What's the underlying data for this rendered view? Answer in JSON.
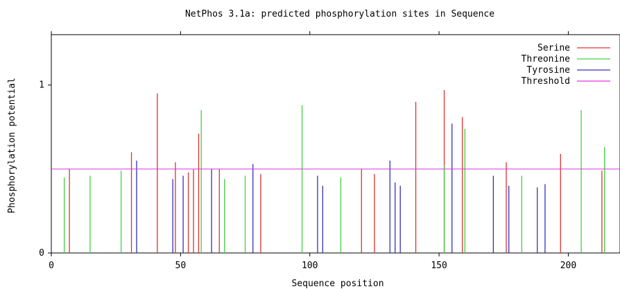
{
  "chart_data": {
    "type": "bar",
    "title": "NetPhos 3.1a: predicted phosphorylation sites in Sequence",
    "xlabel": "Sequence position",
    "ylabel": "Phosphorylation potential",
    "xlim": [
      0,
      220
    ],
    "ylim": [
      0,
      1.3
    ],
    "x_ticks": [
      {
        "value": 0,
        "label": "0"
      },
      {
        "value": 50,
        "label": "50"
      },
      {
        "value": 100,
        "label": "100"
      },
      {
        "value": 150,
        "label": "150"
      },
      {
        "value": 200,
        "label": "200"
      }
    ],
    "y_ticks": [
      {
        "value": 0,
        "label": "0"
      },
      {
        "value": 1,
        "label": "1"
      }
    ],
    "grid": false,
    "legend_position": "top-right",
    "legend": [
      {
        "label": "Serine",
        "color": "#e03030"
      },
      {
        "label": "Threonine",
        "color": "#40d040"
      },
      {
        "label": "Tyrosine",
        "color": "#3030c0"
      },
      {
        "label": "Threshold",
        "color": "#e030e0"
      }
    ],
    "threshold": 0.5,
    "series": [
      {
        "name": "Serine",
        "color": "#e03030",
        "points": [
          {
            "x": 7,
            "y": 0.5
          },
          {
            "x": 31,
            "y": 0.6
          },
          {
            "x": 41,
            "y": 0.95
          },
          {
            "x": 48,
            "y": 0.54
          },
          {
            "x": 53,
            "y": 0.48
          },
          {
            "x": 55,
            "y": 0.5
          },
          {
            "x": 57,
            "y": 0.71
          },
          {
            "x": 65,
            "y": 0.5
          },
          {
            "x": 81,
            "y": 0.47
          },
          {
            "x": 120,
            "y": 0.5
          },
          {
            "x": 125,
            "y": 0.47
          },
          {
            "x": 141,
            "y": 0.9
          },
          {
            "x": 152,
            "y": 0.97
          },
          {
            "x": 159,
            "y": 0.81
          },
          {
            "x": 176,
            "y": 0.54
          },
          {
            "x": 197,
            "y": 0.59
          },
          {
            "x": 213,
            "y": 0.49
          }
        ]
      },
      {
        "name": "Threonine",
        "color": "#40d040",
        "points": [
          {
            "x": 5,
            "y": 0.45
          },
          {
            "x": 15,
            "y": 0.46
          },
          {
            "x": 27,
            "y": 0.49
          },
          {
            "x": 58,
            "y": 0.85
          },
          {
            "x": 67,
            "y": 0.44
          },
          {
            "x": 75,
            "y": 0.46
          },
          {
            "x": 97,
            "y": 0.88
          },
          {
            "x": 112,
            "y": 0.45
          },
          {
            "x": 152,
            "y": 0.52
          },
          {
            "x": 160,
            "y": 0.74
          },
          {
            "x": 182,
            "y": 0.46
          },
          {
            "x": 205,
            "y": 0.85
          },
          {
            "x": 214,
            "y": 0.63
          }
        ]
      },
      {
        "name": "Tyrosine",
        "color": "#3030c0",
        "points": [
          {
            "x": 33,
            "y": 0.55
          },
          {
            "x": 47,
            "y": 0.44
          },
          {
            "x": 51,
            "y": 0.46
          },
          {
            "x": 62,
            "y": 0.5
          },
          {
            "x": 78,
            "y": 0.53
          },
          {
            "x": 103,
            "y": 0.46
          },
          {
            "x": 105,
            "y": 0.4
          },
          {
            "x": 131,
            "y": 0.55
          },
          {
            "x": 133,
            "y": 0.42
          },
          {
            "x": 135,
            "y": 0.4
          },
          {
            "x": 155,
            "y": 0.77
          },
          {
            "x": 171,
            "y": 0.46
          },
          {
            "x": 177,
            "y": 0.4
          },
          {
            "x": 188,
            "y": 0.39
          },
          {
            "x": 191,
            "y": 0.41
          }
        ]
      }
    ]
  }
}
